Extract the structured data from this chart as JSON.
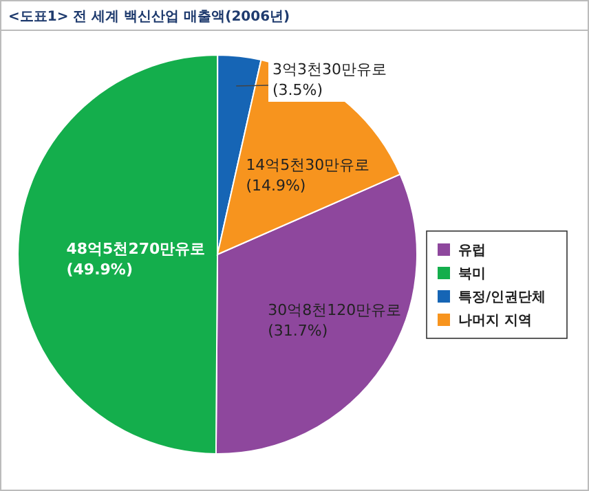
{
  "chart_data": {
    "type": "pie",
    "title": "<도표1> 전 세계 백신산업 매출액(2006년)",
    "categories": [
      "유럽",
      "북미",
      "특정/인권단체",
      "나머지 지역"
    ],
    "values": [
      31.7,
      49.9,
      3.5,
      14.9
    ],
    "colors": [
      "#8e479d",
      "#14ae4c",
      "#1665b5",
      "#f7941e"
    ],
    "value_labels": [
      "30억8천120만유로 (31.7%)",
      "48억5천270만유로 (49.9%)",
      "3억3천30만유로 (3.5%)",
      "14억5천30만유로 (14.9%)"
    ],
    "legend": "right"
  }
}
